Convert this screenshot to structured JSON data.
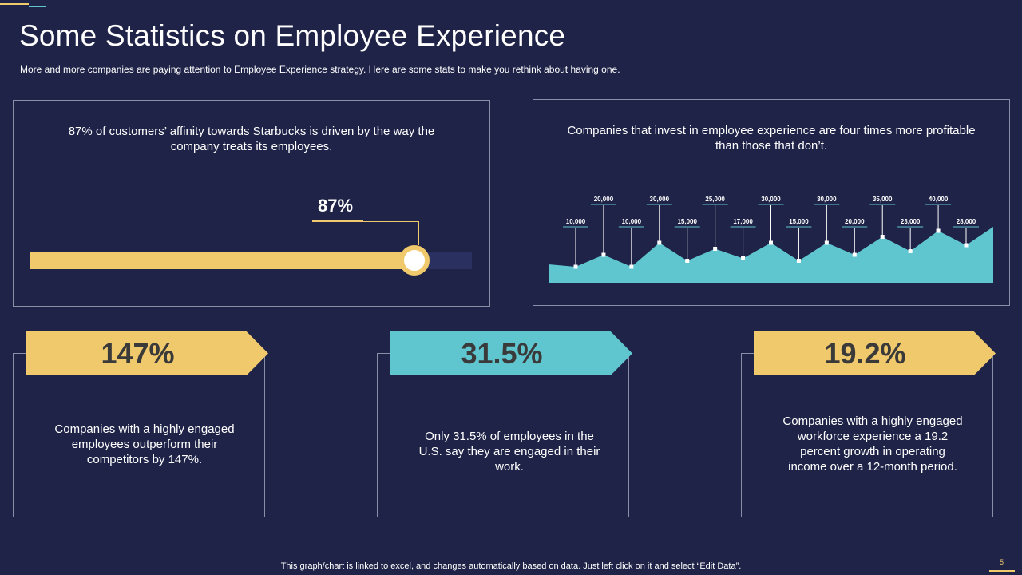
{
  "slide": {
    "title": "Some Statistics on Employee Experience",
    "subtitle": "More and more companies are paying attention to Employee Experience strategy. Here are some stats to make you rethink about having one.",
    "footer": "This graph/chart is linked to excel,  and changes automatically based on data. Just left click on it and select “Edit Data”.",
    "page_number": "5"
  },
  "colors": {
    "background": "#1f2347",
    "gold": "#f0c96c",
    "teal": "#5fc6d0",
    "border": "#8a8fa8"
  },
  "left_panel": {
    "text": "87% of customers’ affinity towards Starbucks is driven by the way the company treats its employees.",
    "progress_label": "87%",
    "progress_value": 0.87
  },
  "right_panel": {
    "text": "Companies that invest in employee experience are four times more profitable than those that don’t."
  },
  "chart_data": {
    "type": "area",
    "title": "",
    "xlabel": "",
    "ylabel": "",
    "ylim": [
      0,
      50000
    ],
    "grid": false,
    "values": [
      10000,
      20000,
      10000,
      30000,
      15000,
      25000,
      17000,
      30000,
      15000,
      30000,
      20000,
      35000,
      23000,
      40000,
      28000
    ],
    "labels": [
      "10,000",
      "20,000",
      "10,000",
      "30,000",
      "15,000",
      "25,000",
      "17,000",
      "30,000",
      "15,000",
      "30,000",
      "20,000",
      "35,000",
      "23,000",
      "40,000",
      "28,000"
    ]
  },
  "cards": [
    {
      "value": "147%",
      "text": "Companies with a highly engaged employees outperform their competitors by 147%.",
      "ribbon_color": "#f0c96c"
    },
    {
      "value": "31.5%",
      "text": "Only 31.5% of employees in the U.S. say they are engaged in their work.",
      "ribbon_color": "#5fc6d0"
    },
    {
      "value": "19.2%",
      "text": "Companies with a highly engaged workforce experience a 19.2 percent growth in operating income over a 12-month period.",
      "ribbon_color": "#f0c96c"
    }
  ]
}
